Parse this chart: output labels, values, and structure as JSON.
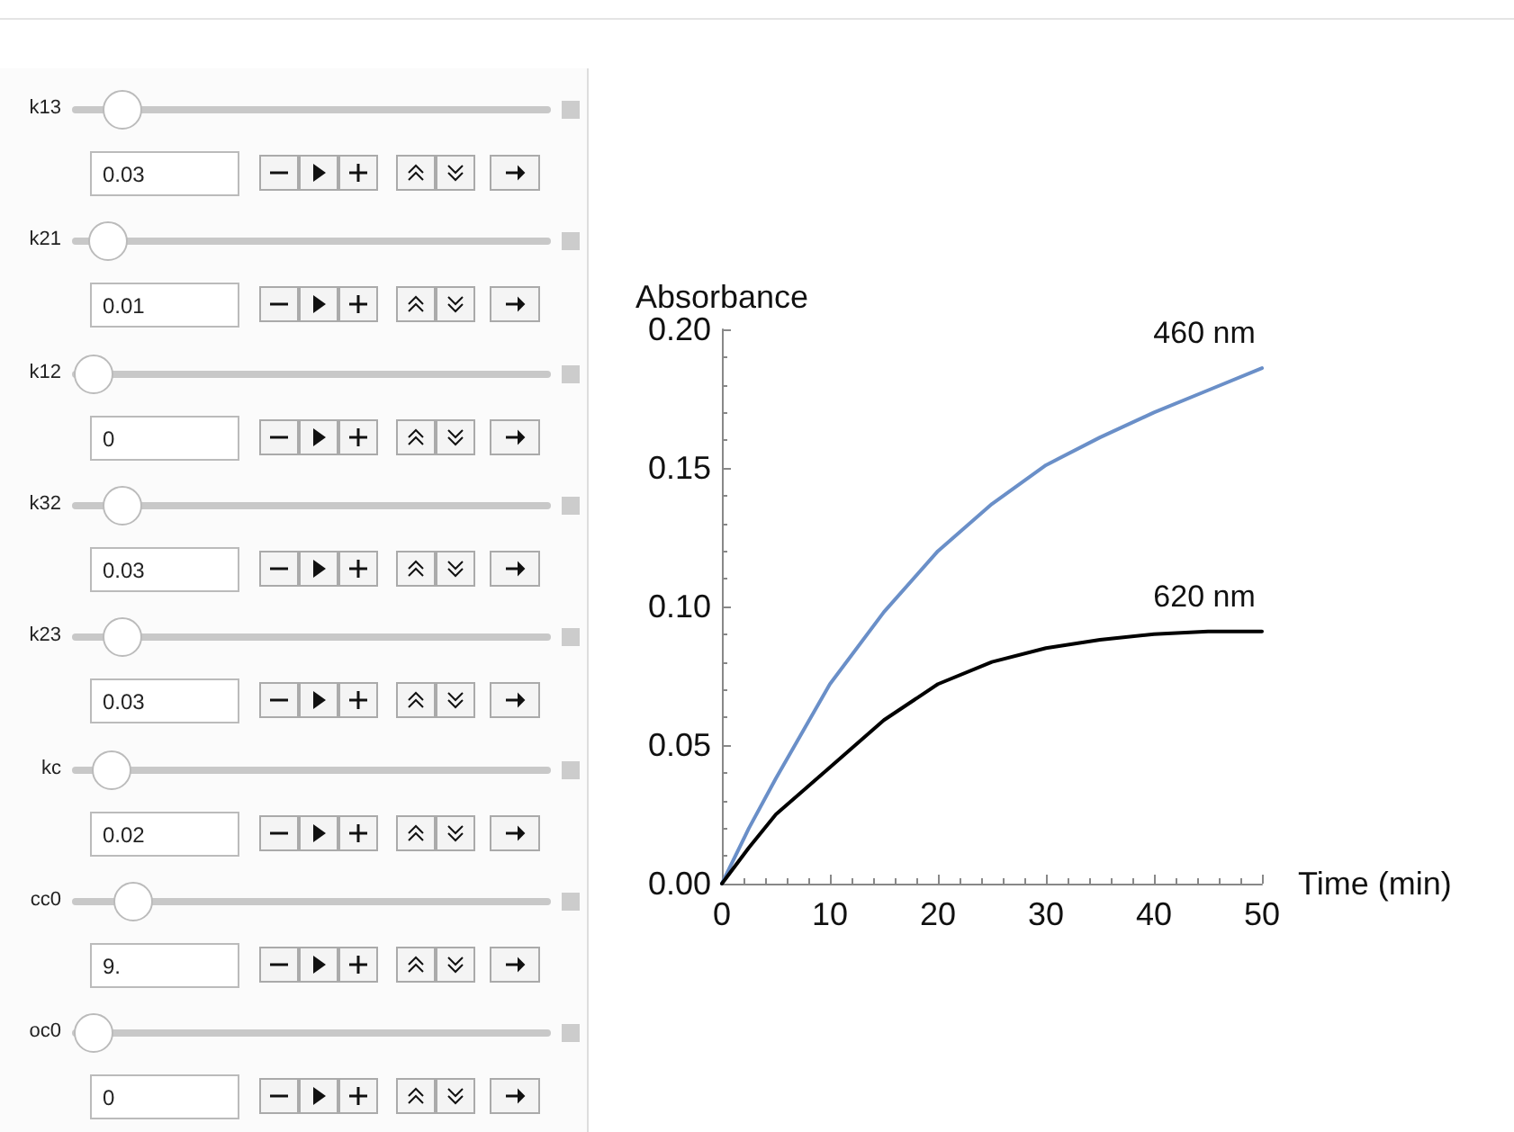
{
  "chart_data": [
    {
      "type": "other",
      "annotations": [
        "k13",
        "0.03",
        "k21",
        "0.01",
        "k12",
        "0",
        "k32",
        "0.03",
        "k23",
        "0.03",
        "kc",
        "0.02",
        "cc0",
        "9.",
        "oc0",
        "0"
      ]
    },
    {
      "type": "line",
      "xlabel": "Time (min)",
      "ylabel": "Absorbance",
      "x": [
        0,
        2.5,
        5,
        10,
        15,
        20,
        25,
        30,
        35,
        40,
        45,
        50
      ],
      "series": [
        {
          "name": "460 nm",
          "color": "#6a8fc8",
          "values": [
            0,
            0.02,
            0.038,
            0.072,
            0.098,
            0.12,
            0.137,
            0.151,
            0.161,
            0.17,
            0.178,
            0.186
          ]
        },
        {
          "name": "620 nm",
          "color": "#000000",
          "values": [
            0,
            0.013,
            0.025,
            0.042,
            0.059,
            0.072,
            0.08,
            0.085,
            0.088,
            0.09,
            0.091,
            0.091
          ]
        }
      ],
      "xlim": [
        0,
        50
      ],
      "xticks": [
        0,
        10,
        20,
        30,
        40,
        50
      ],
      "ylim": [
        0,
        0.2
      ],
      "yticks": [
        {
          "value": 0,
          "label": "0.00"
        },
        {
          "value": 0.05,
          "label": "0.05"
        },
        {
          "value": 0.1,
          "label": "0.10"
        },
        {
          "value": 0.15,
          "label": "0.15"
        },
        {
          "value": 0.2,
          "label": "0.20"
        }
      ],
      "grid": false,
      "legend": false,
      "marker": "none",
      "line_style": "solid"
    }
  ]
}
